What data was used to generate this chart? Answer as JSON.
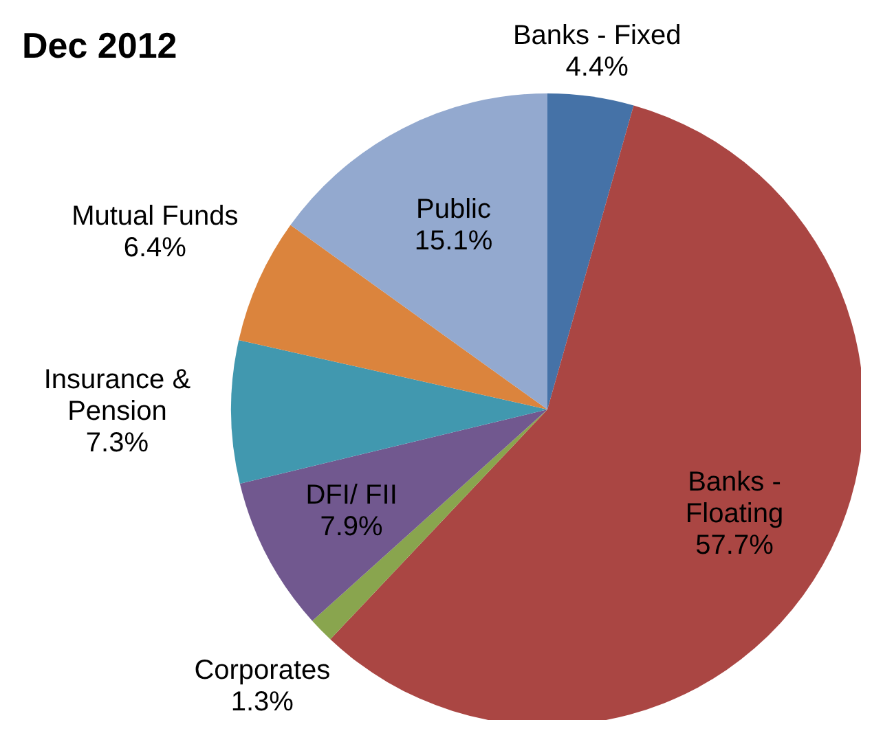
{
  "chart_data": {
    "type": "pie",
    "title": "Dec 2012",
    "categories": [
      "Banks - Fixed",
      "Banks - Floating",
      "Corporates",
      "DFI/ FII",
      "Insurance & Pension",
      "Mutual Funds",
      "Public"
    ],
    "values": [
      4.4,
      57.7,
      1.3,
      7.9,
      7.3,
      6.4,
      15.1
    ],
    "colors": [
      "#4572a7",
      "#aa4643",
      "#89a54e",
      "#71588f",
      "#4198af",
      "#db843d",
      "#93a9cf"
    ],
    "value_labels": [
      "4.4%",
      "57.7%",
      "1.3%",
      "7.9%",
      "7.3%",
      "6.4%",
      "15.1%"
    ]
  }
}
